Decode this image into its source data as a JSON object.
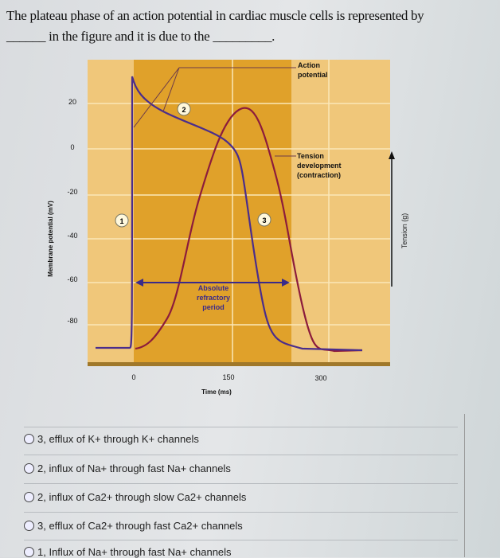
{
  "question": {
    "line1": "The plateau phase of an action potential in cardiac muscle cells is represented by",
    "blank1": "______",
    "line2": "in the figure and it is due to the",
    "blank2": "_________."
  },
  "figure": {
    "y_axis_label": "Membrane potential (mV)",
    "y_ticks": [
      "20",
      "0",
      "-20",
      "-40",
      "-60",
      "-80"
    ],
    "x_ticks": [
      "0",
      "150",
      "300"
    ],
    "x_axis_label": "Time (ms)",
    "right_axis_label": "Tension (g)",
    "labels": {
      "action_potential": [
        "Action",
        "potential"
      ],
      "tension": [
        "Tension",
        "development",
        "(contraction)"
      ],
      "refractory": [
        "Absolute",
        "refractory",
        "period"
      ]
    },
    "markers": [
      "1",
      "2",
      "3"
    ],
    "colors": {
      "background": "#f0c77a",
      "refractory_region": "#e0a12a",
      "action_potential": "#4a2d8c",
      "tension": "#8c1c3c"
    }
  },
  "options": [
    {
      "label": "3, efflux of K+ through K+ channels"
    },
    {
      "label": "2, influx of Na+ through fast Na+ channels"
    },
    {
      "label": "2, influx of Ca2+ through slow Ca2+ channels"
    },
    {
      "label": "3, efflux of Ca2+ through fast Ca2+ channels"
    },
    {
      "label": "1, Influx of Na+ through fast Na+ channels"
    }
  ]
}
